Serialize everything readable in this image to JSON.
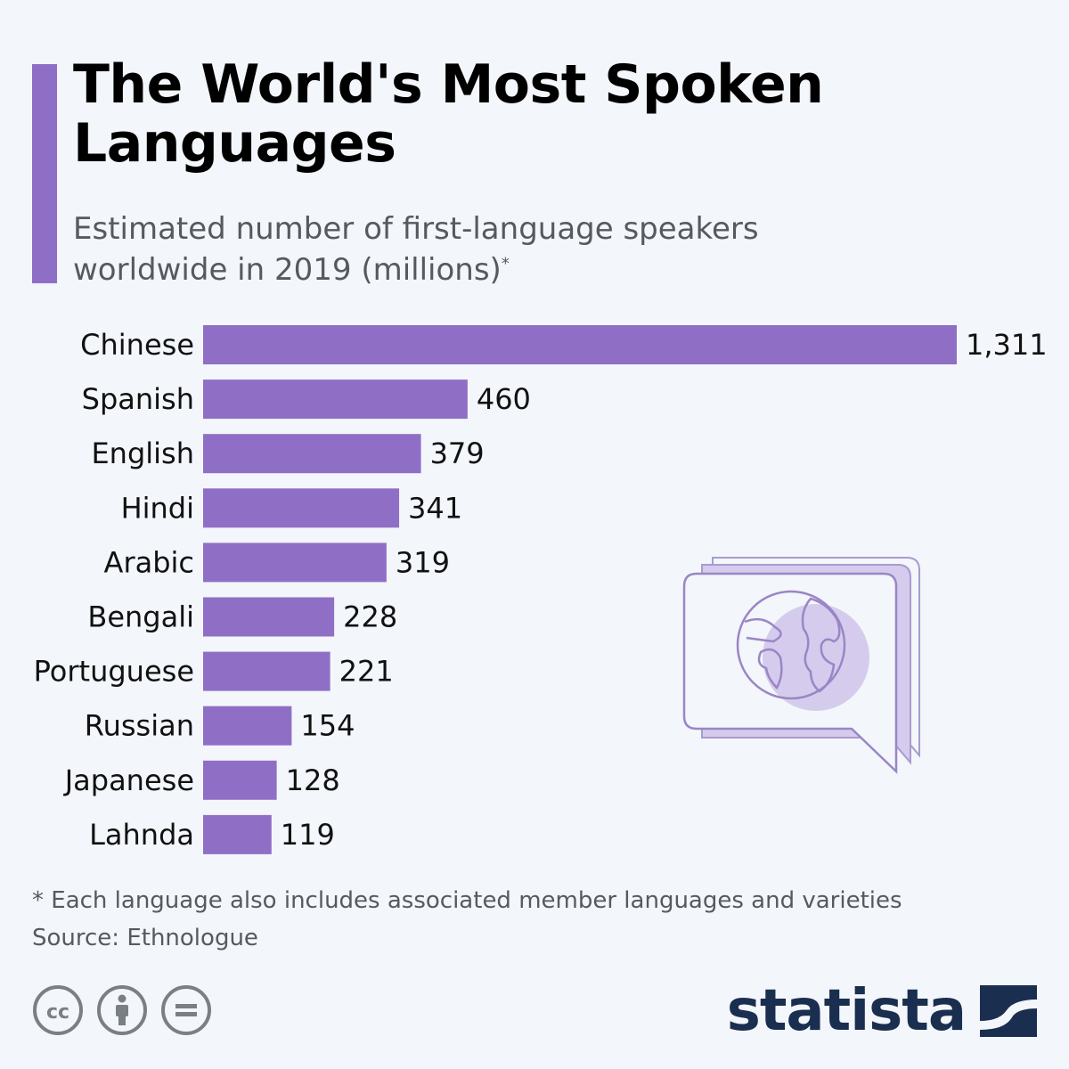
{
  "header": {
    "title": "The World's Most Spoken Languages",
    "subtitle": "Estimated number of first-language speakers worldwide in 2019 (millions)",
    "subtitle_marker": "*"
  },
  "chart_data": {
    "type": "bar",
    "orientation": "horizontal",
    "title": "The World's Most Spoken Languages",
    "subtitle": "Estimated number of first-language speakers worldwide in 2019 (millions)",
    "categories": [
      "Chinese",
      "Spanish",
      "English",
      "Hindi",
      "Arabic",
      "Bengali",
      "Portuguese",
      "Russian",
      "Japanese",
      "Lahnda"
    ],
    "values": [
      1311,
      460,
      379,
      341,
      319,
      228,
      221,
      154,
      128,
      119
    ],
    "value_labels": [
      "1,311",
      "460",
      "379",
      "341",
      "319",
      "228",
      "221",
      "154",
      "128",
      "119"
    ],
    "xlim": [
      0,
      1311
    ],
    "bar_color": "#8f6fc6",
    "xlabel": "",
    "ylabel": "",
    "grid": false
  },
  "footer": {
    "note": "* Each language also includes associated member languages and varieties",
    "source": "Source: Ethnologue",
    "brand": "statista"
  },
  "colors": {
    "accent": "#8f6fc6",
    "illustration_fill": "#d5cced",
    "brand": "#1a2e4f"
  },
  "icons": [
    "cc-icon",
    "attribution-icon",
    "no-derivatives-icon",
    "speech-bubble-globe-icon",
    "statista-logo-icon"
  ]
}
